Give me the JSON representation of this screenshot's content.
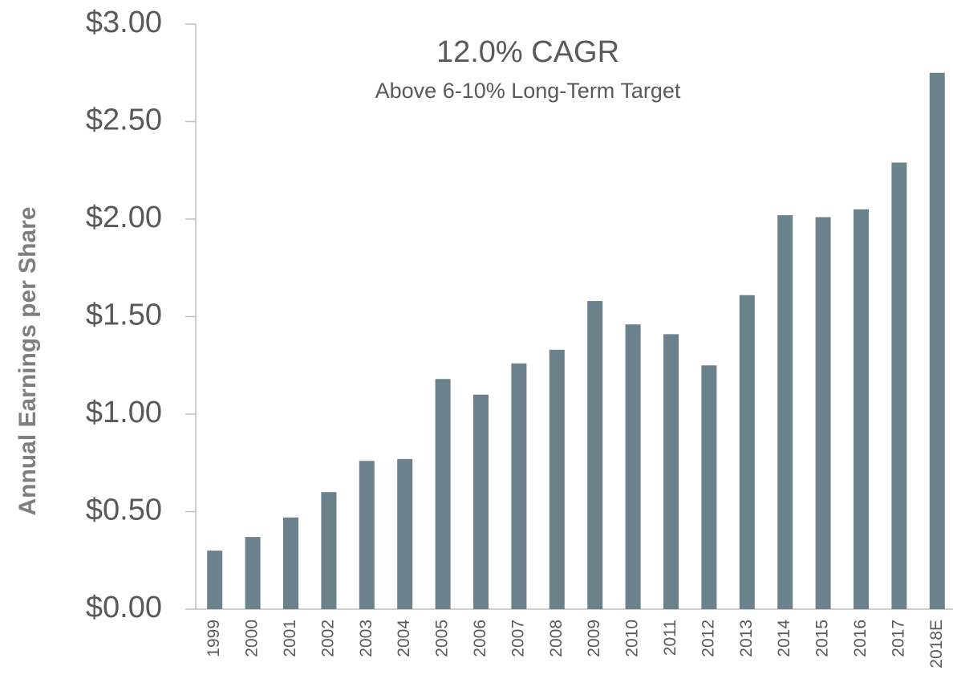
{
  "chart_data": {
    "type": "bar",
    "title": "12.0% CAGR",
    "subtitle": "Above 6-10% Long-Term Target",
    "y_label": "Annual Earnings per Share",
    "categories": [
      "1999",
      "2000",
      "2001",
      "2002",
      "2003",
      "2004",
      "2005",
      "2006",
      "2007",
      "2008",
      "2009",
      "2010",
      "2011",
      "2012",
      "2013",
      "2014",
      "2015",
      "2016",
      "2017",
      "2018E"
    ],
    "values": [
      0.3,
      0.37,
      0.47,
      0.6,
      0.76,
      0.77,
      1.18,
      1.1,
      1.26,
      1.33,
      1.58,
      1.46,
      1.41,
      1.25,
      1.61,
      2.02,
      2.01,
      2.05,
      2.29,
      2.75
    ],
    "color": "#6b818c",
    "ylim": [
      0,
      3
    ],
    "yticks": [
      {
        "value": 0,
        "label": "$0.00"
      },
      {
        "value": 0.5,
        "label": "$0.50"
      },
      {
        "value": 1,
        "label": "$1.00"
      },
      {
        "value": 1.5,
        "label": "$1.50"
      },
      {
        "value": 2,
        "label": "$2.00"
      },
      {
        "value": 2.5,
        "label": "$2.50"
      },
      {
        "value": 3,
        "label": "$3.00"
      }
    ],
    "grid": false
  }
}
